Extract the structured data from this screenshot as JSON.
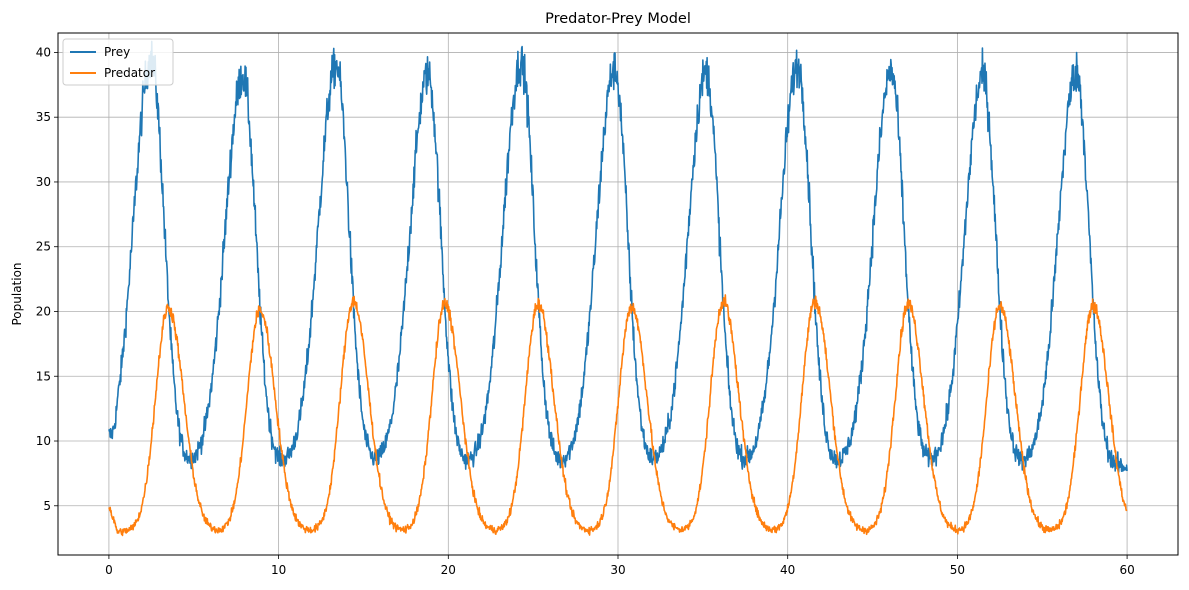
{
  "chart_data": {
    "type": "line",
    "title": "Predator-Prey Model",
    "xlabel": "",
    "ylabel": "Population",
    "xlim": [
      -3,
      63
    ],
    "ylim": [
      1.2,
      41.5
    ],
    "xticks": [
      0,
      10,
      20,
      30,
      40,
      50,
      60
    ],
    "yticks": [
      5,
      10,
      15,
      20,
      25,
      30,
      35,
      40
    ],
    "grid": true,
    "legend_position": "upper-left",
    "x_range": [
      0,
      60
    ],
    "prey_peak_times": [
      2.5,
      7.9,
      13.4,
      18.8,
      24.3,
      29.8,
      35.2,
      40.6,
      46.1,
      51.5,
      57.0
    ],
    "prey_peak_values": [
      39.5,
      38.2,
      39.0,
      38.3,
      39.3,
      38.7,
      38.5,
      39.0,
      38.5,
      38.2,
      38.5
    ],
    "predator_peak_times": [
      3.5,
      8.9,
      14.4,
      19.8,
      25.3,
      30.8,
      36.2,
      41.6,
      47.1,
      52.5,
      58.0
    ],
    "predator_peak_values": [
      20.3,
      20.1,
      20.8,
      20.6,
      20.6,
      20.4,
      20.8,
      20.8,
      20.6,
      20.4,
      20.5
    ],
    "prey_min": 8.0,
    "predator_min": 3.0,
    "series": [
      {
        "name": "Prey",
        "color": "#1f77b4",
        "start": 10.5
      },
      {
        "name": "Predator",
        "color": "#ff7f0e",
        "start": 5.0
      }
    ]
  }
}
